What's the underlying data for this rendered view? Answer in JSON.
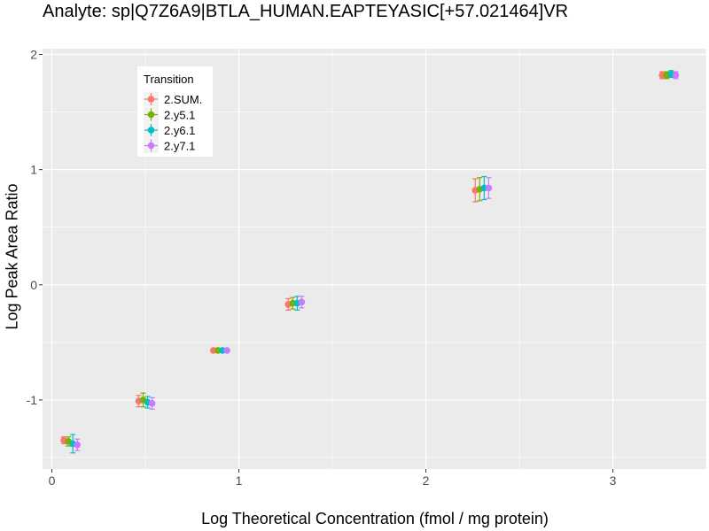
{
  "chart_data": {
    "type": "scatter",
    "title": "Analyte: sp|Q7Z6A9|BTLA_HUMAN.EAPTEYASIC[+57.021464]VR",
    "xlabel": "Log Theoretical Concentration (fmol / mg protein)",
    "ylabel": "Log Peak Area Ratio",
    "xlim": [
      -0.05,
      3.5
    ],
    "ylim": [
      -1.6,
      2.05
    ],
    "x_ticks": [
      0,
      1,
      2,
      3
    ],
    "y_ticks": [
      -1,
      0,
      1,
      2
    ],
    "grid": true,
    "legend": {
      "title": "Transition",
      "position": "top-left inside"
    },
    "series": [
      {
        "name": "2.SUM.",
        "color": "#F8766D",
        "x": [
          0.1,
          0.5,
          0.9,
          1.3,
          2.3,
          3.3
        ],
        "y": [
          -1.35,
          -1.01,
          -0.57,
          -0.17,
          0.82,
          1.82
        ],
        "err": [
          0.03,
          0.05,
          0.01,
          0.05,
          0.1,
          0.03
        ]
      },
      {
        "name": "2.y5.1",
        "color": "#7CAE00",
        "x": [
          0.1,
          0.5,
          0.9,
          1.3,
          2.3,
          3.3
        ],
        "y": [
          -1.36,
          -1.0,
          -0.57,
          -0.16,
          0.83,
          1.82
        ],
        "err": [
          0.04,
          0.06,
          0.01,
          0.05,
          0.1,
          0.03
        ]
      },
      {
        "name": "2.y6.1",
        "color": "#00BFC4",
        "x": [
          0.1,
          0.5,
          0.9,
          1.3,
          2.3,
          3.3
        ],
        "y": [
          -1.38,
          -1.02,
          -0.57,
          -0.16,
          0.84,
          1.83
        ],
        "err": [
          0.08,
          0.05,
          0.01,
          0.06,
          0.1,
          0.03
        ]
      },
      {
        "name": "2.y7.1",
        "color": "#C77CFF",
        "x": [
          0.1,
          0.5,
          0.9,
          1.3,
          2.3,
          3.3
        ],
        "y": [
          -1.39,
          -1.03,
          -0.57,
          -0.15,
          0.84,
          1.82
        ],
        "err": [
          0.05,
          0.05,
          0.01,
          0.05,
          0.09,
          0.03
        ]
      }
    ]
  }
}
